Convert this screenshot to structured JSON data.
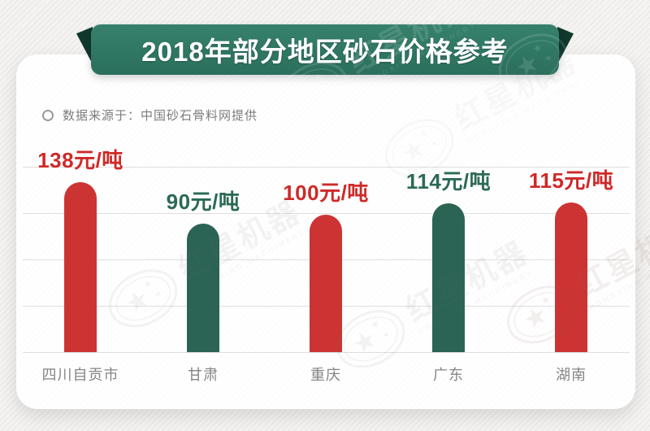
{
  "banner": {
    "title": "2018年部分地区砂石价格参考"
  },
  "source": {
    "label": "数据来源于：中国砂石骨料网提供"
  },
  "watermark": {
    "brand": "红星机器",
    "brand_en": "HONGXING MACHINERY"
  },
  "colors": {
    "ribbon_green": "#2f7b65",
    "ribbon_fold_dark": "#11382d",
    "bar_red": "#cc3433",
    "bar_green": "#2b6454",
    "label_red": "#ce2a28",
    "label_green": "#2b6a55",
    "category_gray": "#858585",
    "grid_gray": "#dedede"
  },
  "chart_data": {
    "type": "bar",
    "title": "2018年部分地区砂石价格参考",
    "source_note": "数据来源于：中国砂石骨料网提供",
    "categories": [
      "四川自贡市",
      "甘肃",
      "重庆",
      "广东",
      "湖南"
    ],
    "values": [
      138,
      90,
      100,
      114,
      115
    ],
    "unit": "元/吨",
    "value_labels": [
      "138元/吨",
      "90元/吨",
      "100元/吨",
      "114元/吨",
      "115元/吨"
    ],
    "bar_variants": [
      "red",
      "green",
      "red",
      "green",
      "red"
    ],
    "xlabel": "",
    "ylabel": "",
    "ylim": [
      0,
      160
    ],
    "grid": true,
    "legend": false
  }
}
